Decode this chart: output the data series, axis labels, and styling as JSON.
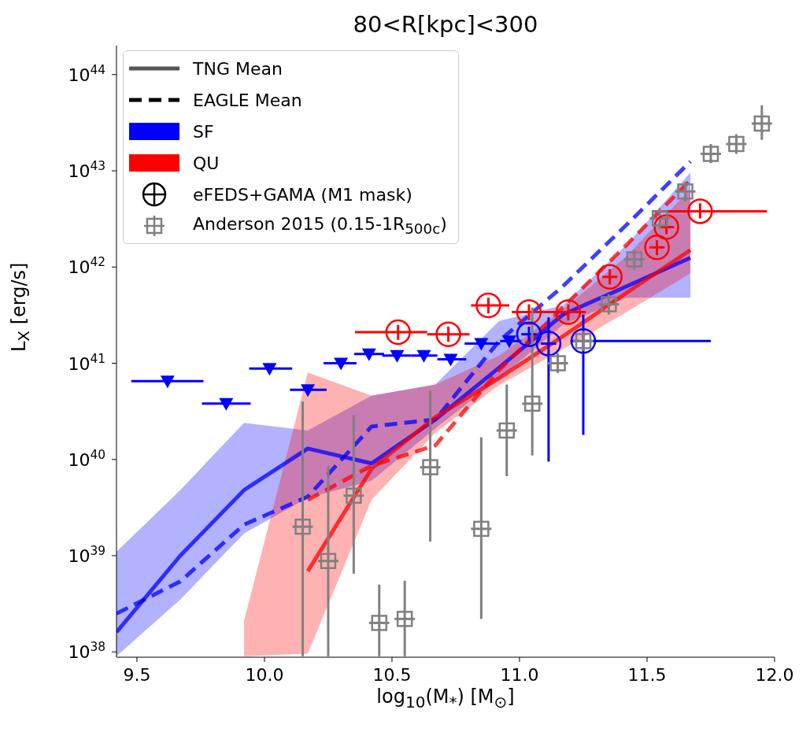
{
  "chart_data": {
    "type": "line",
    "title": "80<R[kpc]<300",
    "xlabel": "log$_{10}$(M$_{*}$) [M$_{⊙}$]",
    "ylabel": "L$_{X}$ [erg/s]",
    "log": "y",
    "legend": "top left",
    "annotations": [
      "TNG Mean",
      "EAGLE Mean",
      "eFEDS+GAMA (M1 mask)"
    ],
    "xlim": [
      9.42,
      12.0
    ],
    "xticks": [
      9.5,
      {
        "value": 10,
        "label": "10.0"
      },
      10.5,
      {
        "value": 11,
        "label": "11.0"
      },
      11.5,
      {
        "value": 12,
        "label": "12.0"
      }
    ],
    "ylim": [
      8.8e+37,
      2e+44
    ],
    "yticks": [
      {
        "value": 1e+38,
        "label": "10$^{38}$"
      },
      {
        "value": 1e+39,
        "label": "10$^{39}$"
      },
      {
        "value": 1e+40,
        "label": "10$^{40}$"
      },
      {
        "value": 1e+41,
        "label": "10$^{41}$"
      },
      {
        "value": 1e+42,
        "label": "10$^{42}$"
      },
      {
        "value": 1e+43,
        "label": "10$^{43}$"
      },
      {
        "value": 1e+44,
        "label": "10$^{44}$"
      }
    ],
    "series": [
      {
        "name": "SF",
        "color": "#0000ff",
        "line_style": "solid",
        "x": [
          9.42,
          9.67,
          9.92,
          10.17,
          10.42,
          10.67,
          10.92,
          11.17,
          11.42,
          11.67
        ],
        "values": [
          1.6e+38,
          1e+39,
          4.8e+39,
          1.3e+40,
          9.1e+39,
          2.6e+40,
          9e+40,
          3.2e+41,
          6.3e+41,
          1.25e+42
        ],
        "lower": [
          9e+37,
          3.5e+38,
          1.7e+39,
          4e+39,
          6e+39,
          2.1e+40,
          6.9e+40,
          2.5e+41,
          4.8e+41,
          4.8e+41
        ],
        "upper": [
          1.1e+39,
          4.8e+39,
          2.4e+40,
          2e+40,
          4.6e+40,
          6e+40,
          2.75e+41,
          4e+41,
          1.7e+42,
          9.6e+42
        ]
      },
      {
        "color": "#0000ff",
        "line_style": "dashed",
        "x": [
          9.42,
          9.67,
          9.92,
          10.17,
          10.42,
          10.67,
          10.92,
          11.17,
          11.42,
          11.67
        ],
        "values": [
          2.5e+38,
          5.4e+38,
          2.1e+39,
          4.1e+39,
          2.2e+40,
          2.6e+40,
          1.7e+41,
          6.3e+41,
          2.75e+42,
          1.25e+43
        ]
      },
      {
        "name": "QU",
        "color": "#ff0000",
        "line_style": "solid",
        "x": [
          9.92,
          10.17,
          10.42,
          10.67,
          10.92,
          11.17,
          11.42,
          11.67
        ],
        "values": [
          null,
          6.9e+38,
          8e+39,
          2.75e+40,
          7e+40,
          1.9e+41,
          5.4e+41,
          1.5e+42
        ],
        "lower": [
          9e+37,
          9.6e+37,
          3.8e+39,
          1.9e+40,
          5.9e+40,
          1.4e+41,
          3.4e+41,
          8.6e+41
        ],
        "upper": [
          2.1e+38,
          8e+40,
          4.6e+40,
          6e+40,
          1.2e+41,
          3.6e+41,
          1.3e+42,
          6.5e+42
        ]
      },
      {
        "color": "#ff0000",
        "line_style": "dashed",
        "x": [
          10.17,
          10.42,
          10.67,
          10.92,
          11.17,
          11.42,
          11.67
        ],
        "values": [
          3.8e+39,
          8.6e+39,
          1.4e+40,
          8.5e+40,
          3.8e+41,
          1.7e+42,
          8e+42
        ]
      },
      {
        "type": "scatter",
        "color": "#0000ff",
        "marker": "triangle",
        "x": [
          9.62,
          9.85,
          10.02,
          10.17,
          10.3,
          10.41,
          10.52,
          10.625,
          10.73,
          10.85,
          10.96
        ],
        "values": [
          6.5e+40,
          3.8e+40,
          8.8e+40,
          5.3e+40,
          1e+41,
          1.25e+41,
          1.2e+41,
          1.2e+41,
          1.1e+41,
          1.6e+41,
          1.7e+41
        ],
        "xerrors": [
          [
            9.478,
            9.761
          ],
          [
            9.755,
            9.946
          ],
          [
            9.94,
            10.109
          ],
          [
            10.1,
            10.244
          ],
          [
            10.232,
            10.361
          ],
          [
            10.352,
            10.469
          ],
          [
            10.462,
            10.576
          ],
          [
            10.576,
            10.678
          ],
          [
            10.678,
            10.791
          ],
          [
            10.785,
            10.924
          ],
          [
            10.924,
            11.007
          ]
        ]
      },
      {
        "type": "scatter",
        "color": "#ff0000",
        "marker": "circle",
        "x": [
          10.524,
          10.721,
          10.878,
          11.037,
          11.191,
          11.354,
          11.539,
          11.576,
          11.708
        ],
        "values": [
          2.1e+41,
          2e+41,
          4e+41,
          3.4e+41,
          3.4e+41,
          7.9e+41,
          1.6e+42,
          2.6e+42,
          3.8e+42
        ],
        "errors": [
          [
            1.75e+41,
            2.5e+41
          ],
          [
            1.67e+41,
            2.4e+41
          ],
          [
            3.3e+41,
            4.8e+41
          ],
          [
            2.8e+41,
            4.1e+41
          ],
          [
            2.8e+41,
            4.1e+41
          ],
          [
            6.6e+41,
            9.5e+41
          ],
          [
            1.33e+42,
            1.9e+42
          ],
          [
            2.2e+42,
            3.1e+42
          ],
          [
            3.2e+42,
            4.6e+42
          ]
        ],
        "xerrors": [
          [
            10.355,
            10.638
          ],
          [
            10.638,
            10.804
          ],
          [
            10.81,
            10.96
          ],
          [
            10.97,
            11.14
          ],
          [
            11.14,
            11.26
          ],
          0.03,
          0.03,
          0.03,
          [
            11.52,
            11.97
          ]
        ]
      },
      {
        "type": "scatter",
        "color": "#0000ff",
        "marker": "circle",
        "x": [
          11.037,
          11.114,
          11.25
        ],
        "values": [
          2e+41,
          1.6e+41,
          1.7e+41
        ],
        "errors": [
          [
            1.7e+41,
            2.4e+41
          ],
          [
            9.5e+39,
            3e+41
          ],
          [
            1.8e+40,
            3.2e+41
          ]
        ],
        "xerrors": [
          0.03,
          0.03,
          [
            11.2,
            11.75
          ]
        ]
      },
      {
        "name": "Anderson 2015 (0.15-1R$_{500c}$)",
        "type": "scatter",
        "color": "#808080",
        "marker": "square",
        "x": [
          10.15,
          10.25,
          10.35,
          10.45,
          10.55,
          10.65,
          10.75,
          10.85,
          10.95,
          11.05,
          11.15,
          11.25,
          11.35,
          11.45,
          11.55,
          11.65,
          11.75,
          11.85,
          11.95
        ],
        "values": [
          2e+39,
          8.8e+38,
          4.2e+39,
          2e+38,
          2.2e+38,
          8.3e+39,
          null,
          1.9e+39,
          2e+40,
          3.8e+40,
          1e+41,
          1.7e+41,
          4.1e+41,
          1.2e+42,
          3.2e+42,
          6.1e+42,
          1.5e+43,
          1.9e+43,
          3.1e+43
        ],
        "errors": [
          [
            9e+37,
            4e+40
          ],
          [
            9e+37,
            8.6e+39
          ],
          [
            6.5e+38,
            2.9e+40
          ],
          [
            9e+37,
            5e+38
          ],
          [
            9e+37,
            5.5e+38
          ],
          [
            1.4e+39,
            5.2e+40
          ],
          null,
          [
            2.2e+38,
            1.7e+40
          ],
          [
            6.7e+39,
            6e+40
          ],
          [
            1.1e+40,
            3.8e+41
          ],
          [
            7.9e+40,
            1.27e+41
          ],
          [
            1.34e+41,
            2.16e+41
          ],
          [
            3.2e+41,
            5.2e+41
          ],
          [
            9.4e+41,
            1.5e+42
          ],
          [
            2.5e+42,
            4.1e+42
          ],
          [
            4.8e+42,
            7.7e+42
          ],
          [
            1.2e+43,
            1.9e+43
          ],
          [
            1.5e+43,
            2.4e+43
          ],
          [
            2.1e+43,
            4.8e+43
          ]
        ],
        "xerrors": [
          0.04,
          0.04,
          0.04,
          0.04,
          0.04,
          0.04,
          null,
          0.04,
          0.04,
          0.04,
          0.04,
          0.04,
          0.04,
          0.04,
          0.04,
          0.04,
          0.04,
          0.04,
          0.04
        ]
      }
    ]
  }
}
